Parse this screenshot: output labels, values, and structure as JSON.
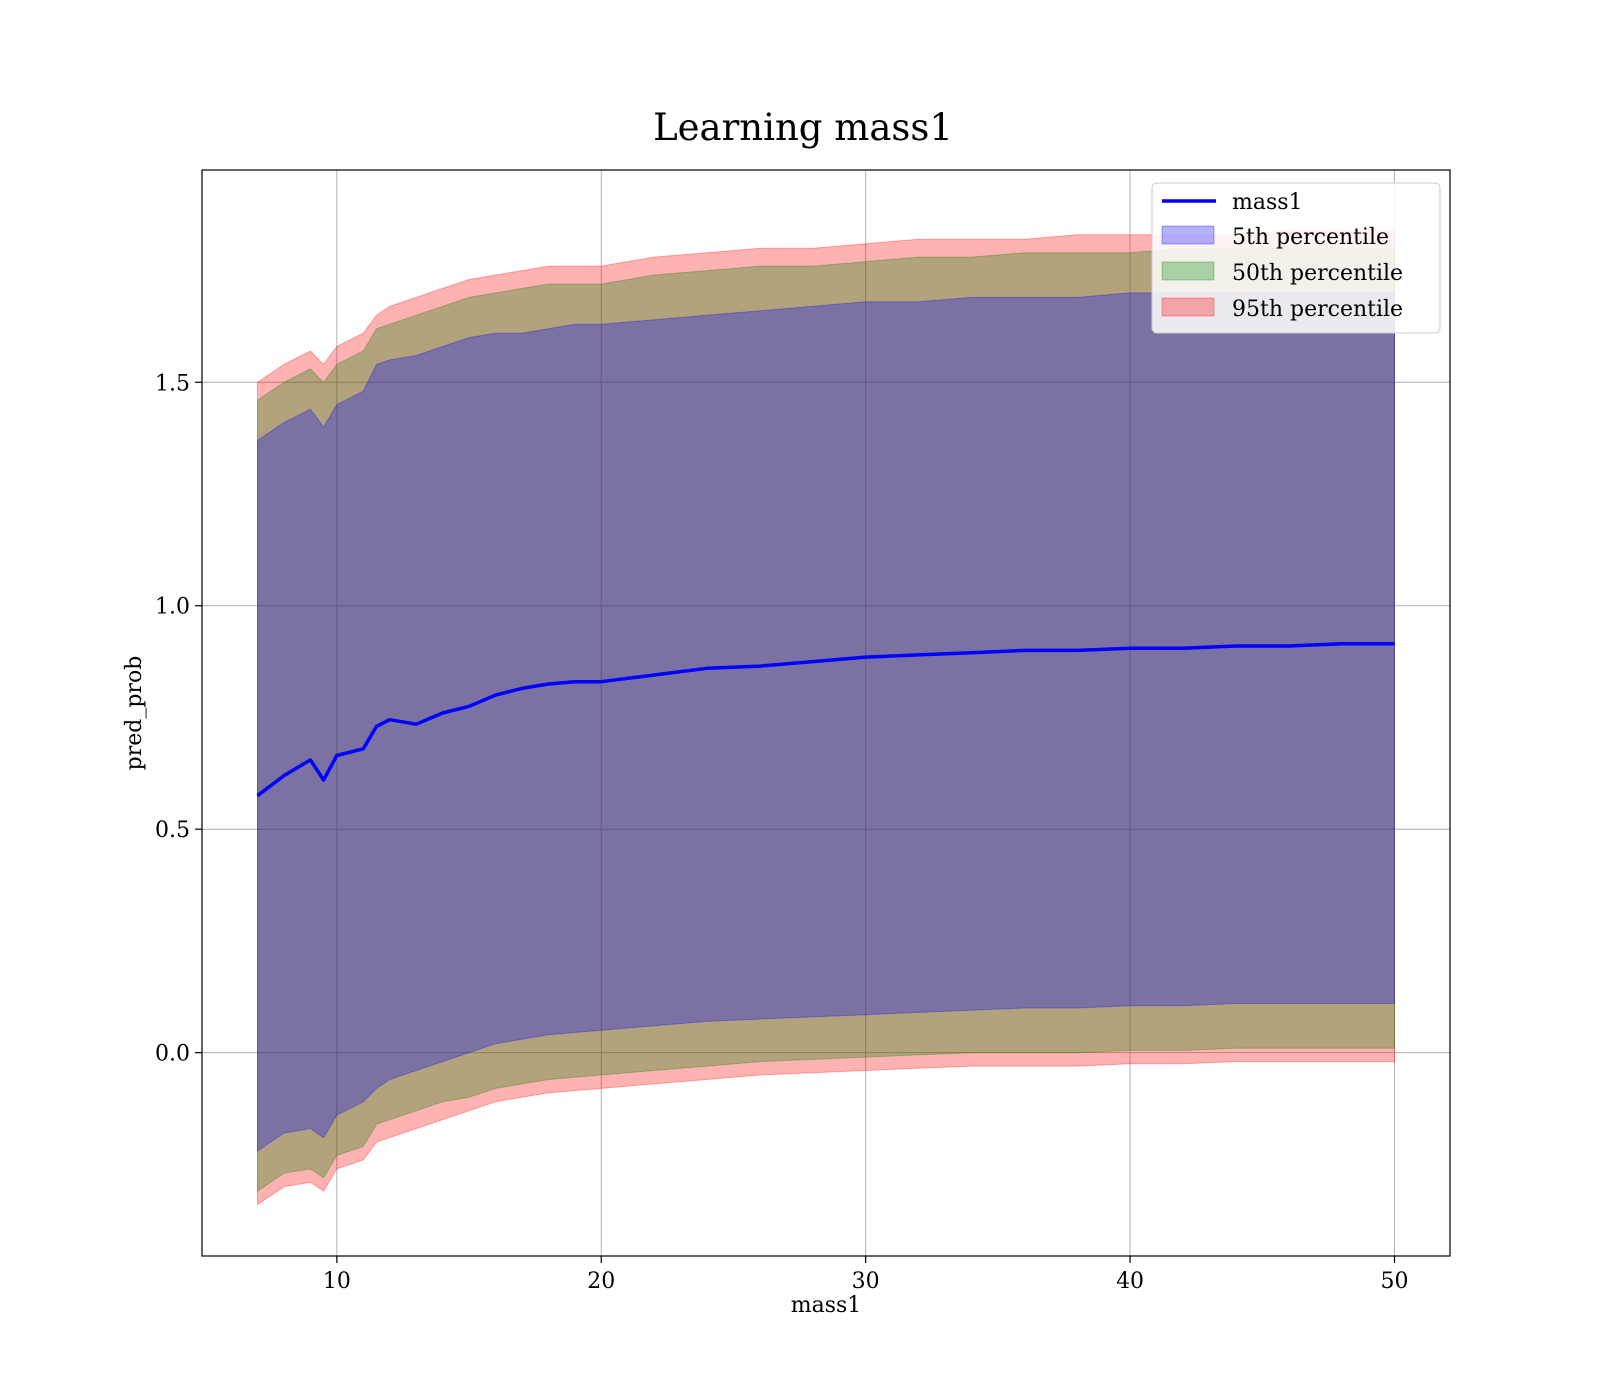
{
  "chart_data": {
    "type": "line",
    "title": "Learning mass1",
    "xlabel": "mass1",
    "ylabel": "pred_prob",
    "xlim": [
      4.9,
      52.1
    ],
    "ylim": [
      -0.455,
      1.975
    ],
    "xticks": [
      10,
      20,
      30,
      40,
      50
    ],
    "xtick_labels": [
      "10",
      "20",
      "30",
      "40",
      "50"
    ],
    "yticks": [
      0.0,
      0.5,
      1.0,
      1.5
    ],
    "ytick_labels": [
      "0.0",
      "0.5",
      "1.0",
      "1.5"
    ],
    "grid": true,
    "legend_position": "top-right",
    "x": [
      7,
      8,
      9,
      9.5,
      10,
      11,
      11.5,
      12,
      13,
      14,
      15,
      16,
      17,
      18,
      19,
      20,
      22,
      24,
      26,
      28,
      30,
      32,
      34,
      36,
      38,
      40,
      42,
      44,
      46,
      48,
      50
    ],
    "line": {
      "name": "mass1",
      "color": "#0000ff",
      "values": [
        0.575,
        0.62,
        0.655,
        0.61,
        0.665,
        0.68,
        0.73,
        0.745,
        0.735,
        0.76,
        0.775,
        0.8,
        0.815,
        0.825,
        0.83,
        0.83,
        0.845,
        0.86,
        0.865,
        0.875,
        0.885,
        0.89,
        0.895,
        0.9,
        0.9,
        0.905,
        0.905,
        0.91,
        0.91,
        0.915,
        0.915
      ]
    },
    "bands": [
      {
        "name": "5th percentile",
        "color": "#0000ff",
        "lower": [
          -0.22,
          -0.18,
          -0.17,
          -0.19,
          -0.14,
          -0.11,
          -0.08,
          -0.06,
          -0.04,
          -0.02,
          0.0,
          0.02,
          0.03,
          0.04,
          0.045,
          0.05,
          0.06,
          0.07,
          0.075,
          0.08,
          0.085,
          0.09,
          0.095,
          0.1,
          0.1,
          0.105,
          0.105,
          0.11,
          0.11,
          0.11,
          0.11
        ],
        "upper": [
          1.37,
          1.41,
          1.44,
          1.4,
          1.45,
          1.48,
          1.54,
          1.55,
          1.56,
          1.58,
          1.6,
          1.61,
          1.61,
          1.62,
          1.63,
          1.63,
          1.64,
          1.65,
          1.66,
          1.67,
          1.68,
          1.68,
          1.69,
          1.69,
          1.69,
          1.7,
          1.7,
          1.7,
          1.7,
          1.7,
          1.7
        ]
      },
      {
        "name": "50th percentile",
        "color": "#008000",
        "lower": [
          -0.31,
          -0.27,
          -0.26,
          -0.28,
          -0.23,
          -0.21,
          -0.16,
          -0.15,
          -0.13,
          -0.11,
          -0.1,
          -0.08,
          -0.07,
          -0.06,
          -0.055,
          -0.05,
          -0.04,
          -0.03,
          -0.02,
          -0.015,
          -0.01,
          -0.005,
          0.0,
          0.0,
          0.0,
          0.005,
          0.005,
          0.01,
          0.01,
          0.01,
          0.01
        ],
        "upper": [
          1.46,
          1.5,
          1.53,
          1.5,
          1.54,
          1.57,
          1.62,
          1.63,
          1.65,
          1.67,
          1.69,
          1.7,
          1.71,
          1.72,
          1.72,
          1.72,
          1.74,
          1.75,
          1.76,
          1.76,
          1.77,
          1.78,
          1.78,
          1.79,
          1.79,
          1.79,
          1.8,
          1.8,
          1.8,
          1.8,
          1.8
        ]
      },
      {
        "name": "95th percentile",
        "color": "#ff0000",
        "lower": [
          -0.34,
          -0.3,
          -0.29,
          -0.31,
          -0.26,
          -0.24,
          -0.2,
          -0.19,
          -0.17,
          -0.15,
          -0.13,
          -0.11,
          -0.1,
          -0.09,
          -0.085,
          -0.08,
          -0.07,
          -0.06,
          -0.05,
          -0.045,
          -0.04,
          -0.035,
          -0.03,
          -0.03,
          -0.03,
          -0.025,
          -0.025,
          -0.02,
          -0.02,
          -0.02,
          -0.02
        ],
        "upper": [
          1.5,
          1.54,
          1.57,
          1.54,
          1.58,
          1.61,
          1.65,
          1.67,
          1.69,
          1.71,
          1.73,
          1.74,
          1.75,
          1.76,
          1.76,
          1.76,
          1.78,
          1.79,
          1.8,
          1.8,
          1.81,
          1.82,
          1.82,
          1.82,
          1.83,
          1.83,
          1.83,
          1.83,
          1.84,
          1.84,
          1.84
        ]
      }
    ]
  }
}
